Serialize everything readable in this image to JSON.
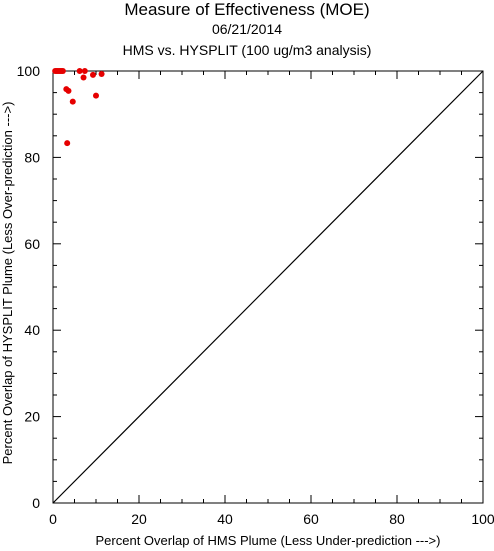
{
  "chart_data": {
    "type": "scatter",
    "title": "Measure of Effectiveness (MOE)",
    "subtitle": "06/21/2014",
    "subtitle2": "HMS vs. HYSPLIT  (100 ug/m3 analysis)",
    "xlabel": "Percent Overlap of HMS Plume (Less Under-prediction --->)",
    "ylabel": "Percent Overlap of HYSPLIT Plume (Less Over-prediction --->)",
    "xlim": [
      0,
      100
    ],
    "ylim": [
      0,
      100
    ],
    "xticks": [
      0,
      20,
      40,
      60,
      80,
      100
    ],
    "yticks": [
      0,
      20,
      40,
      60,
      80,
      100
    ],
    "grid": false,
    "reference_line": "y = x",
    "point_color": "#e60000",
    "points": [
      {
        "x": 0.5,
        "y": 100
      },
      {
        "x": 0.8,
        "y": 100
      },
      {
        "x": 1.1,
        "y": 100
      },
      {
        "x": 1.4,
        "y": 100
      },
      {
        "x": 1.7,
        "y": 100
      },
      {
        "x": 2.0,
        "y": 100
      },
      {
        "x": 2.3,
        "y": 100
      },
      {
        "x": 6.2,
        "y": 100
      },
      {
        "x": 7.4,
        "y": 100
      },
      {
        "x": 11.3,
        "y": 99.3
      },
      {
        "x": 9.3,
        "y": 99.1
      },
      {
        "x": 7.1,
        "y": 98.5
      },
      {
        "x": 3.1,
        "y": 95.8
      },
      {
        "x": 3.6,
        "y": 95.4
      },
      {
        "x": 10.0,
        "y": 94.3
      },
      {
        "x": 4.6,
        "y": 92.9
      },
      {
        "x": 3.3,
        "y": 83.3
      }
    ]
  }
}
